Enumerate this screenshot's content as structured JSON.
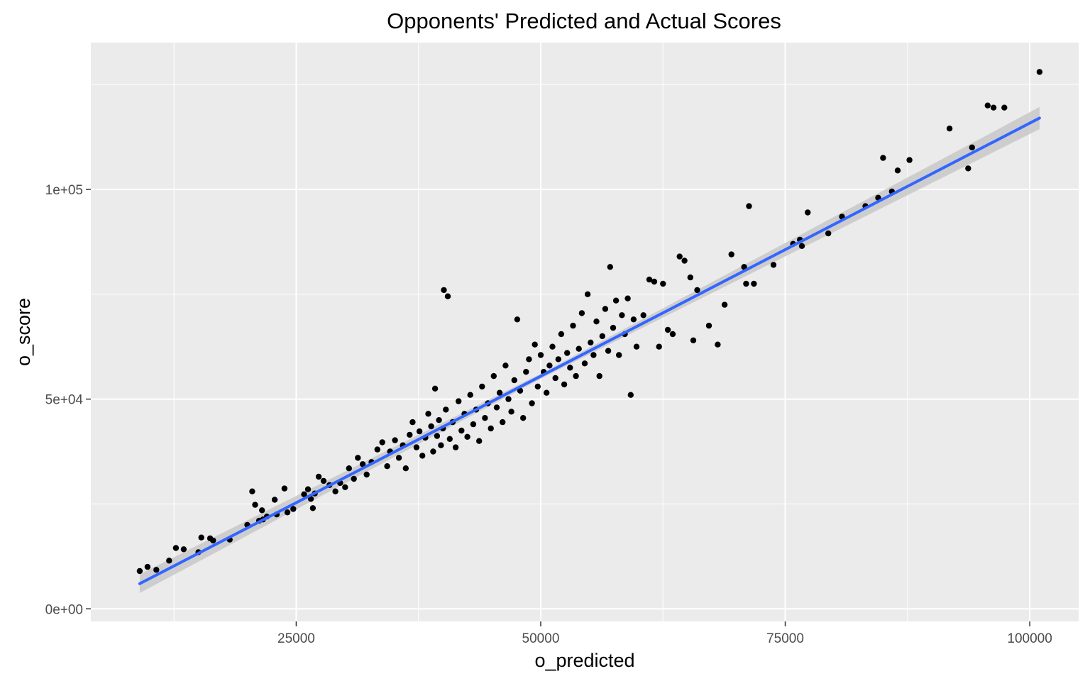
{
  "chart_data": {
    "type": "scatter",
    "title": "Opponents' Predicted and Actual Scores",
    "xlabel": "o_predicted",
    "ylabel": "o_score",
    "xlim": [
      4000,
      105000
    ],
    "ylim": [
      -3000,
      135000
    ],
    "x_ticks": [
      {
        "value": 25000,
        "label": "25000"
      },
      {
        "value": 50000,
        "label": "50000"
      },
      {
        "value": 75000,
        "label": "75000"
      },
      {
        "value": 100000,
        "label": "100000"
      }
    ],
    "y_ticks": [
      {
        "value": 0,
        "label": "0e+00"
      },
      {
        "value": 50000,
        "label": "5e+04"
      },
      {
        "value": 100000,
        "label": "1e+05"
      }
    ],
    "grid": true,
    "background_color": "#ebebeb",
    "grid_color": "#ffffff",
    "point_color": "#000000",
    "fit_line_color": "#3366ff",
    "confidence_band_color": "#c8c8c8",
    "fit_line": {
      "method": "lm",
      "x": [
        9000,
        101000
      ],
      "y": [
        6000,
        117000
      ],
      "se": true
    },
    "points": [
      [
        9000,
        9000
      ],
      [
        9800,
        10000
      ],
      [
        10700,
        9300
      ],
      [
        12000,
        11500
      ],
      [
        12700,
        14500
      ],
      [
        13500,
        14200
      ],
      [
        15000,
        13500
      ],
      [
        15300,
        17000
      ],
      [
        16200,
        16800
      ],
      [
        16500,
        16300
      ],
      [
        18200,
        16500
      ],
      [
        20000,
        20000
      ],
      [
        20500,
        28000
      ],
      [
        20800,
        24800
      ],
      [
        21200,
        21000
      ],
      [
        21500,
        23500
      ],
      [
        21600,
        21300
      ],
      [
        22000,
        22000
      ],
      [
        22800,
        26000
      ],
      [
        23000,
        22500
      ],
      [
        23800,
        28700
      ],
      [
        24100,
        23000
      ],
      [
        24700,
        23800
      ],
      [
        25800,
        27300
      ],
      [
        26200,
        28500
      ],
      [
        26500,
        26200
      ],
      [
        26700,
        24000
      ],
      [
        26900,
        27500
      ],
      [
        27300,
        31500
      ],
      [
        27800,
        30500
      ],
      [
        28400,
        29500
      ],
      [
        29000,
        28000
      ],
      [
        29500,
        30000
      ],
      [
        30000,
        29000
      ],
      [
        30400,
        33500
      ],
      [
        30900,
        31000
      ],
      [
        31300,
        36000
      ],
      [
        31800,
        34500
      ],
      [
        32200,
        32000
      ],
      [
        32700,
        35000
      ],
      [
        33300,
        38000
      ],
      [
        33800,
        39700
      ],
      [
        34300,
        34000
      ],
      [
        34600,
        37500
      ],
      [
        35100,
        40200
      ],
      [
        35500,
        36000
      ],
      [
        35900,
        39000
      ],
      [
        36200,
        33500
      ],
      [
        36600,
        41500
      ],
      [
        36900,
        44500
      ],
      [
        37300,
        38500
      ],
      [
        37600,
        42300
      ],
      [
        37900,
        36500
      ],
      [
        38200,
        40800
      ],
      [
        38500,
        46500
      ],
      [
        38800,
        43500
      ],
      [
        39000,
        37500
      ],
      [
        39200,
        52500
      ],
      [
        39400,
        41200
      ],
      [
        39600,
        45000
      ],
      [
        39800,
        39000
      ],
      [
        40000,
        43000
      ],
      [
        40100,
        76000
      ],
      [
        40500,
        74500
      ],
      [
        40300,
        47500
      ],
      [
        40700,
        40500
      ],
      [
        41000,
        44500
      ],
      [
        41300,
        38500
      ],
      [
        41600,
        49500
      ],
      [
        41900,
        42500
      ],
      [
        42200,
        46500
      ],
      [
        42500,
        41000
      ],
      [
        42800,
        51000
      ],
      [
        43100,
        44000
      ],
      [
        43400,
        47500
      ],
      [
        43700,
        40000
      ],
      [
        44000,
        53000
      ],
      [
        44300,
        45500
      ],
      [
        44600,
        49000
      ],
      [
        44900,
        43000
      ],
      [
        45200,
        55500
      ],
      [
        45500,
        48000
      ],
      [
        45800,
        51500
      ],
      [
        46100,
        44500
      ],
      [
        46400,
        58000
      ],
      [
        46700,
        50000
      ],
      [
        47000,
        47000
      ],
      [
        47300,
        54500
      ],
      [
        47600,
        69000
      ],
      [
        47900,
        52000
      ],
      [
        48200,
        45500
      ],
      [
        48500,
        56500
      ],
      [
        48800,
        59500
      ],
      [
        49100,
        49000
      ],
      [
        49400,
        63000
      ],
      [
        49700,
        53000
      ],
      [
        50000,
        60500
      ],
      [
        50300,
        56500
      ],
      [
        50600,
        51500
      ],
      [
        50900,
        58000
      ],
      [
        51200,
        62500
      ],
      [
        51500,
        55000
      ],
      [
        51800,
        59500
      ],
      [
        52100,
        65500
      ],
      [
        52400,
        53500
      ],
      [
        52700,
        61000
      ],
      [
        53000,
        57500
      ],
      [
        53300,
        67500
      ],
      [
        53600,
        55500
      ],
      [
        53900,
        62000
      ],
      [
        54200,
        70500
      ],
      [
        54500,
        58500
      ],
      [
        54800,
        75000
      ],
      [
        55100,
        63500
      ],
      [
        55400,
        60500
      ],
      [
        55700,
        68500
      ],
      [
        56000,
        55500
      ],
      [
        56300,
        65000
      ],
      [
        56600,
        71500
      ],
      [
        56900,
        61500
      ],
      [
        57100,
        81500
      ],
      [
        57400,
        67000
      ],
      [
        57700,
        73500
      ],
      [
        58000,
        60500
      ],
      [
        58300,
        70000
      ],
      [
        58600,
        65500
      ],
      [
        58900,
        74000
      ],
      [
        59200,
        51000
      ],
      [
        59500,
        69000
      ],
      [
        59800,
        62500
      ],
      [
        60500,
        70000
      ],
      [
        61100,
        78500
      ],
      [
        61600,
        78000
      ],
      [
        62100,
        62500
      ],
      [
        62500,
        77500
      ],
      [
        63000,
        66500
      ],
      [
        63500,
        65500
      ],
      [
        64200,
        84000
      ],
      [
        64700,
        83000
      ],
      [
        65300,
        79000
      ],
      [
        65600,
        64000
      ],
      [
        66000,
        76000
      ],
      [
        67200,
        67500
      ],
      [
        68100,
        63000
      ],
      [
        68800,
        72500
      ],
      [
        69500,
        84500
      ],
      [
        70800,
        81500
      ],
      [
        71000,
        77500
      ],
      [
        71300,
        96000
      ],
      [
        71800,
        77500
      ],
      [
        73800,
        82000
      ],
      [
        75800,
        87000
      ],
      [
        76500,
        88000
      ],
      [
        76700,
        86500
      ],
      [
        77300,
        94500
      ],
      [
        79400,
        89500
      ],
      [
        80800,
        93500
      ],
      [
        83200,
        96000
      ],
      [
        84500,
        98000
      ],
      [
        85000,
        107500
      ],
      [
        85900,
        99500
      ],
      [
        86500,
        104500
      ],
      [
        87700,
        107000
      ],
      [
        91800,
        114500
      ],
      [
        93700,
        105000
      ],
      [
        94100,
        110000
      ],
      [
        95700,
        120000
      ],
      [
        96300,
        119500
      ],
      [
        97400,
        119500
      ],
      [
        101000,
        128000
      ]
    ]
  }
}
